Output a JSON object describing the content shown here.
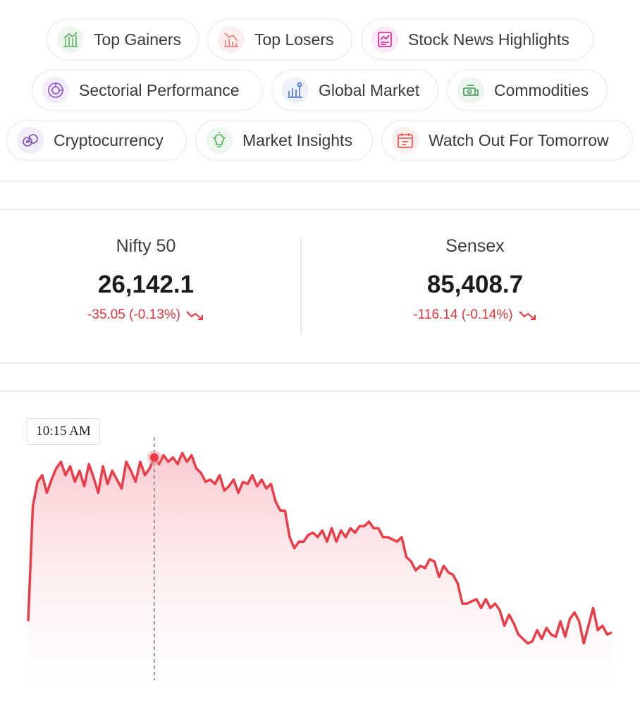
{
  "chips": [
    {
      "label": "Top Gainers",
      "icon": "top-gainers-icon",
      "color": "#4caf50"
    },
    {
      "label": "Top Losers",
      "icon": "top-losers-icon",
      "color": "#e57373"
    },
    {
      "label": "Stock News Highlights",
      "icon": "news-icon",
      "color": "#d81b8f"
    },
    {
      "label": "Sectorial Performance",
      "icon": "sector-icon",
      "color": "#8a4fd8"
    },
    {
      "label": "Global Market",
      "icon": "global-market-icon",
      "color": "#4a6ee0"
    },
    {
      "label": "Commodities",
      "icon": "commodities-icon",
      "color": "#3c9a4f"
    },
    {
      "label": "Cryptocurrency",
      "icon": "crypto-icon",
      "color": "#7b4fb0"
    },
    {
      "label": "Market Insights",
      "icon": "insights-icon",
      "color": "#4caf50"
    },
    {
      "label": "Watch Out For Tomorrow",
      "icon": "calendar-icon",
      "color": "#e84a4a"
    }
  ],
  "indices": [
    {
      "name": "Nifty 50",
      "value": "26,142.1",
      "change": "-35.05 (-0.13%)"
    },
    {
      "name": "Sensex",
      "value": "85,408.7",
      "change": "-116.14 (-0.14%)"
    }
  ],
  "tooltip": {
    "time": "10:15 AM"
  },
  "colors": {
    "negative": "#e8353d",
    "line": "#ec3c48"
  },
  "chart_data": {
    "type": "area",
    "title": "",
    "xlabel": "",
    "ylabel": "",
    "grid": false,
    "highlight_index": 27,
    "ylim": [
      0,
      100
    ],
    "series": [
      {
        "values": [
          20,
          72,
          83,
          86,
          78,
          84,
          89,
          92,
          86,
          90,
          83,
          88,
          81,
          91,
          85,
          78,
          90,
          82,
          88,
          84,
          80,
          92,
          88,
          83,
          92,
          86,
          89,
          94,
          91,
          95,
          92,
          94,
          91,
          96,
          92,
          95,
          89,
          87,
          83,
          84,
          82,
          86,
          79,
          81,
          84,
          78,
          83,
          82,
          86,
          81,
          84,
          80,
          82,
          74,
          70,
          70,
          58,
          53,
          56,
          56,
          59,
          60,
          58,
          61,
          56,
          62,
          56,
          61,
          58,
          62,
          60,
          63,
          63,
          65,
          62,
          62,
          58,
          58,
          57,
          56,
          58,
          49,
          47,
          43,
          45,
          44,
          48,
          47,
          40,
          45,
          42,
          41,
          37,
          28,
          28,
          29,
          30,
          26,
          30,
          26,
          28,
          25,
          18,
          23,
          19,
          14,
          12,
          10,
          11,
          16,
          12,
          17,
          14,
          13,
          20,
          13,
          21,
          24,
          20,
          10,
          18,
          26,
          16,
          18,
          14,
          15
        ]
      }
    ]
  }
}
